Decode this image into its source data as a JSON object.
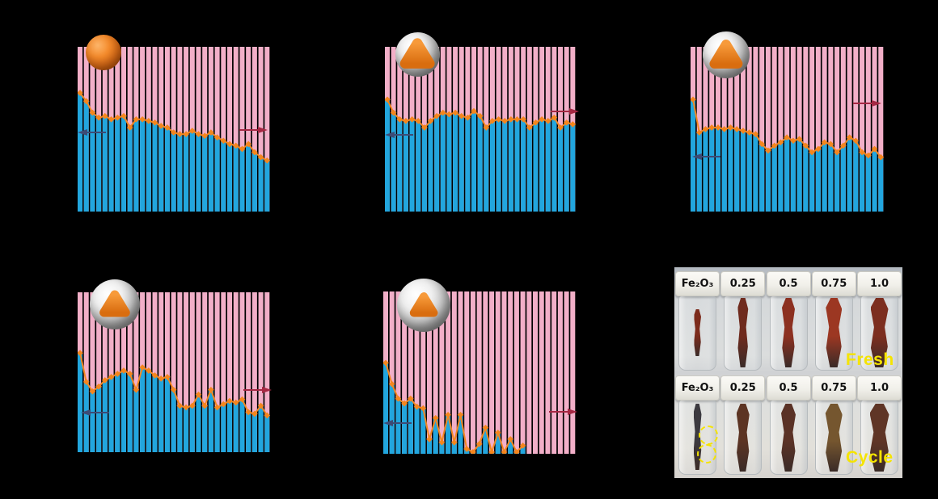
{
  "figure": {
    "background": "#000000",
    "colors": {
      "efficiency_bar": "#F2AFC8",
      "capacity_bar": "#22A6DE",
      "marker_line": "#F4861E",
      "left_axis_arrow": "#3D4B76",
      "right_axis_arrow": "#A52843"
    },
    "panels": [
      {
        "id": "a",
        "icon": "solid-orange-sphere-icon",
        "core_scale": 1.0
      },
      {
        "id": "b",
        "icon": "yolk-shell-sphere-icon",
        "core_scale": 0.95
      },
      {
        "id": "c",
        "icon": "yolk-shell-sphere-icon",
        "core_scale": 0.86
      },
      {
        "id": "d",
        "icon": "yolk-shell-sphere-icon",
        "core_scale": 0.74
      },
      {
        "id": "e",
        "icon": "yolk-shell-sphere-icon",
        "core_scale": 0.64
      }
    ]
  },
  "chart_data": [
    {
      "panel": "a",
      "type": "bar",
      "title": "",
      "xlabel": "",
      "ylabel": "",
      "legend_position": "none",
      "grid": false,
      "ylim": [
        0,
        1
      ],
      "background_bars_value": 1.0,
      "line_end": 31,
      "values": [
        0.72,
        0.67,
        0.6,
        0.57,
        0.58,
        0.56,
        0.57,
        0.58,
        0.51,
        0.56,
        0.56,
        0.55,
        0.54,
        0.52,
        0.51,
        0.48,
        0.47,
        0.47,
        0.49,
        0.47,
        0.46,
        0.48,
        0.45,
        0.43,
        0.41,
        0.4,
        0.38,
        0.41,
        0.36,
        0.33,
        0.31
      ]
    },
    {
      "panel": "b",
      "type": "bar",
      "title": "",
      "xlabel": "",
      "ylabel": "",
      "legend_position": "none",
      "grid": false,
      "ylim": [
        0,
        1
      ],
      "background_bars_value": 1.0,
      "line_end": 31,
      "values": [
        0.68,
        0.6,
        0.56,
        0.55,
        0.56,
        0.55,
        0.51,
        0.55,
        0.58,
        0.6,
        0.59,
        0.6,
        0.58,
        0.57,
        0.61,
        0.58,
        0.51,
        0.55,
        0.56,
        0.55,
        0.56,
        0.56,
        0.56,
        0.51,
        0.54,
        0.56,
        0.55,
        0.57,
        0.51,
        0.54,
        0.53
      ]
    },
    {
      "panel": "c",
      "type": "bar",
      "title": "",
      "xlabel": "",
      "ylabel": "",
      "legend_position": "none",
      "grid": false,
      "ylim": [
        0,
        1
      ],
      "background_bars_value": 1.0,
      "line_end": 31,
      "values": [
        0.68,
        0.48,
        0.5,
        0.51,
        0.51,
        0.5,
        0.51,
        0.5,
        0.49,
        0.48,
        0.47,
        0.41,
        0.37,
        0.4,
        0.42,
        0.45,
        0.43,
        0.44,
        0.4,
        0.36,
        0.38,
        0.42,
        0.41,
        0.36,
        0.4,
        0.45,
        0.43,
        0.36,
        0.34,
        0.38,
        0.33
      ]
    },
    {
      "panel": "d",
      "type": "bar",
      "title": "",
      "xlabel": "",
      "ylabel": "",
      "legend_position": "none",
      "grid": false,
      "ylim": [
        0,
        1
      ],
      "background_bars_value": 1.0,
      "line_end": 31,
      "values": [
        0.62,
        0.44,
        0.38,
        0.41,
        0.45,
        0.47,
        0.49,
        0.51,
        0.49,
        0.39,
        0.53,
        0.51,
        0.48,
        0.46,
        0.47,
        0.39,
        0.29,
        0.28,
        0.29,
        0.36,
        0.29,
        0.39,
        0.28,
        0.3,
        0.32,
        0.31,
        0.33,
        0.25,
        0.24,
        0.29,
        0.23
      ]
    },
    {
      "panel": "e",
      "type": "bar",
      "title": "",
      "xlabel": "",
      "ylabel": "",
      "legend_position": "none",
      "grid": false,
      "ylim": [
        0,
        1
      ],
      "background_bars_value": 1.0,
      "line_end": 23,
      "values": [
        0.56,
        0.43,
        0.34,
        0.31,
        0.34,
        0.29,
        0.28,
        0.09,
        0.22,
        0.07,
        0.24,
        0.07,
        0.24,
        0.03,
        0.01,
        0.06,
        0.16,
        0.01,
        0.13,
        0.01,
        0.09,
        0.01,
        0.05,
        0,
        0,
        0,
        0,
        0,
        0,
        0,
        0
      ]
    }
  ],
  "photo": {
    "tag_color": "#F5E400",
    "rows": [
      {
        "name": "fresh",
        "tag": "Fresh",
        "cap_labels": [
          "Fe₂O₃",
          "0.25",
          "0.5",
          "0.75",
          "1.0"
        ],
        "powder_colors": [
          "#7c2b1c",
          "#6f2b1e",
          "#8c3020",
          "#9c3722",
          "#7c2e1f"
        ],
        "powder_widths": [
          9,
          13,
          16,
          20,
          22
        ],
        "powder_heights": [
          58,
          86,
          86,
          86,
          86
        ],
        "powder_tops": [
          16,
          2,
          2,
          2,
          2
        ]
      },
      {
        "name": "cycle",
        "tag": "Cycle",
        "cap_labels": [
          "Fe₂O₃",
          "0.25",
          "0.5",
          "0.75",
          "1.0"
        ],
        "powder_colors": [
          "#3c3a40",
          "#5c3423",
          "#5a3226",
          "#75562f",
          "#5f3526"
        ],
        "powder_widths": [
          10,
          16,
          18,
          21,
          24
        ],
        "powder_heights": [
          82,
          84,
          84,
          84,
          84
        ],
        "powder_tops": [
          4,
          4,
          4,
          4,
          4
        ],
        "annotation_circles": 2
      }
    ]
  }
}
